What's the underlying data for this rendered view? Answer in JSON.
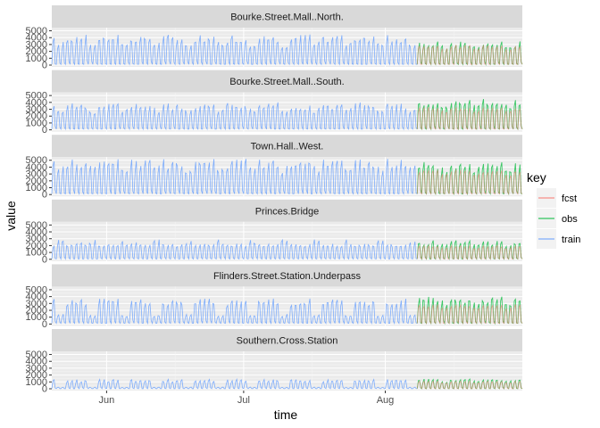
{
  "chart_data": {
    "type": "line",
    "xlabel": "time",
    "ylabel": "value",
    "x_ticks": [
      "Jun",
      "Jul",
      "Aug"
    ],
    "y_ticks": [
      0,
      1000,
      2000,
      3000,
      4000,
      5000
    ],
    "ylim": [
      0,
      5200
    ],
    "x_range": [
      "2016-05-20",
      "2016-08-31"
    ],
    "train_range": [
      "2016-05-20",
      "2016-08-08"
    ],
    "test_range": [
      "2016-08-08",
      "2016-08-31"
    ],
    "grid": true,
    "legend_position": "right",
    "legend": {
      "title": "key",
      "entries": [
        {
          "name": "fcst",
          "color": "#F8766D"
        },
        {
          "name": "obs",
          "color": "#00BA38"
        },
        {
          "name": "train",
          "color": "#619CFF"
        }
      ]
    },
    "panels": [
      {
        "name": "Bourke.Street.Mall..North.",
        "weekday_peak": 3600,
        "weekend_peak": 2800,
        "trough": 100,
        "obs_peak": 2900,
        "fcst_peak": 2900
      },
      {
        "name": "Bourke.Street.Mall..South.",
        "weekday_peak": 3200,
        "weekend_peak": 2600,
        "trough": 100,
        "obs_peak": 3800,
        "fcst_peak": 3300
      },
      {
        "name": "Town.Hall..West.",
        "weekday_peak": 4200,
        "weekend_peak": 3400,
        "trough": 100,
        "obs_peak": 4000,
        "fcst_peak": 3600
      },
      {
        "name": "Princes.Bridge",
        "weekday_peak": 2000,
        "weekend_peak": 2300,
        "trough": 50,
        "obs_peak": 2300,
        "fcst_peak": 2000
      },
      {
        "name": "Flinders.Street.Station.Underpass",
        "weekday_peak": 3000,
        "weekend_peak": 1200,
        "trough": 100,
        "obs_peak": 3400,
        "fcst_peak": 2800
      },
      {
        "name": "Southern.Cross.Station",
        "weekday_peak": 1100,
        "weekend_peak": 200,
        "trough": 20,
        "obs_peak": 1200,
        "fcst_peak": 1100
      }
    ]
  }
}
